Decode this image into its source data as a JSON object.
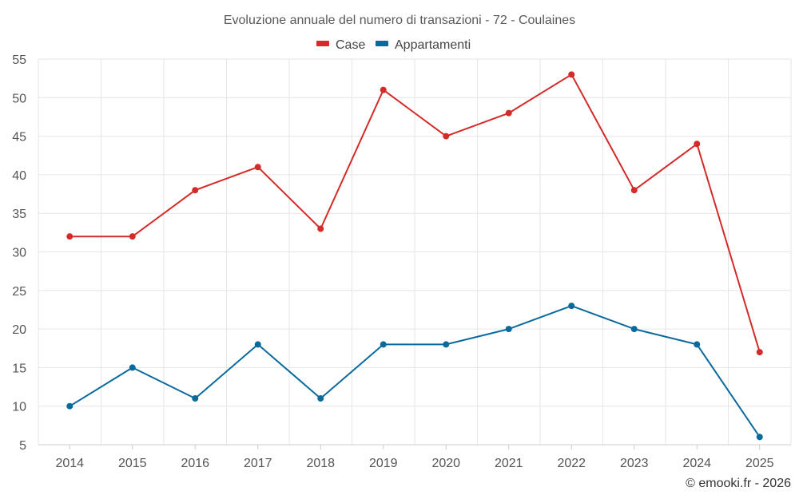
{
  "chart_data": {
    "type": "line",
    "title": "Evoluzione annuale del numero di transazioni - 72 - Coulaines",
    "categories": [
      "2014",
      "2015",
      "2016",
      "2017",
      "2018",
      "2019",
      "2020",
      "2021",
      "2022",
      "2023",
      "2024",
      "2025"
    ],
    "series": [
      {
        "name": "Case",
        "color": "#d42a2a",
        "values": [
          32,
          32,
          38,
          41,
          33,
          51,
          45,
          48,
          53,
          38,
          44,
          17
        ]
      },
      {
        "name": "Appartamenti",
        "color": "#0b6a9c",
        "values": [
          10,
          15,
          11,
          18,
          11,
          18,
          18,
          20,
          23,
          20,
          18,
          6
        ]
      }
    ],
    "ylim": [
      5,
      55
    ],
    "yticks": [
      5,
      10,
      15,
      20,
      25,
      30,
      35,
      40,
      45,
      50,
      55
    ],
    "grid": true,
    "legend_position": "top-center",
    "xlabel": "",
    "ylabel": ""
  },
  "credit": "© emooki.fr - 2026"
}
